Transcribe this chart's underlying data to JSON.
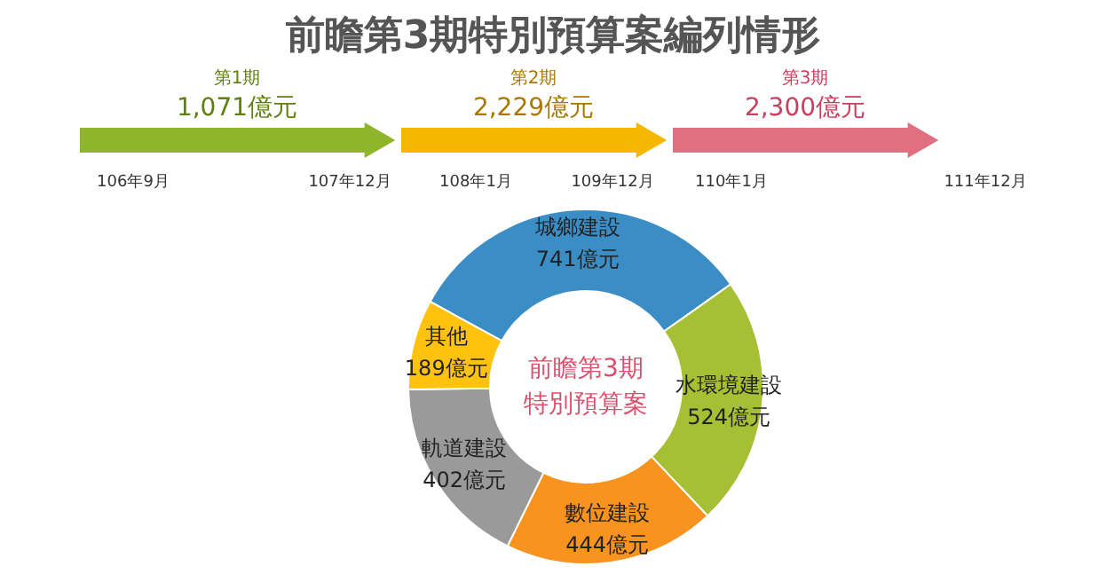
{
  "chart_data": {
    "type": "donut",
    "title": "前瞻第3期特別預算案編列情形",
    "categories": [
      "城鄉建設",
      "水環境建設",
      "數位建設",
      "軌道建設",
      "其他"
    ],
    "values": [
      741,
      524,
      444,
      402,
      189
    ],
    "value_labels": [
      "741億元",
      "524億元",
      "444億元",
      "402億元",
      "189億元"
    ],
    "colors": [
      "#3a8dc5",
      "#a6bf34",
      "#f7931e",
      "#9a9a9a",
      "#ffc30f"
    ],
    "annotations": [
      "前瞻第3期",
      "特別預算案",
      "第1期",
      "1,071億元",
      "106年9月",
      "107年12月",
      "第2期",
      "2,229億元",
      "108年1月",
      "109年12月",
      "第3期",
      "2,300億元",
      "110年1月",
      "111年12月"
    ]
  }
}
